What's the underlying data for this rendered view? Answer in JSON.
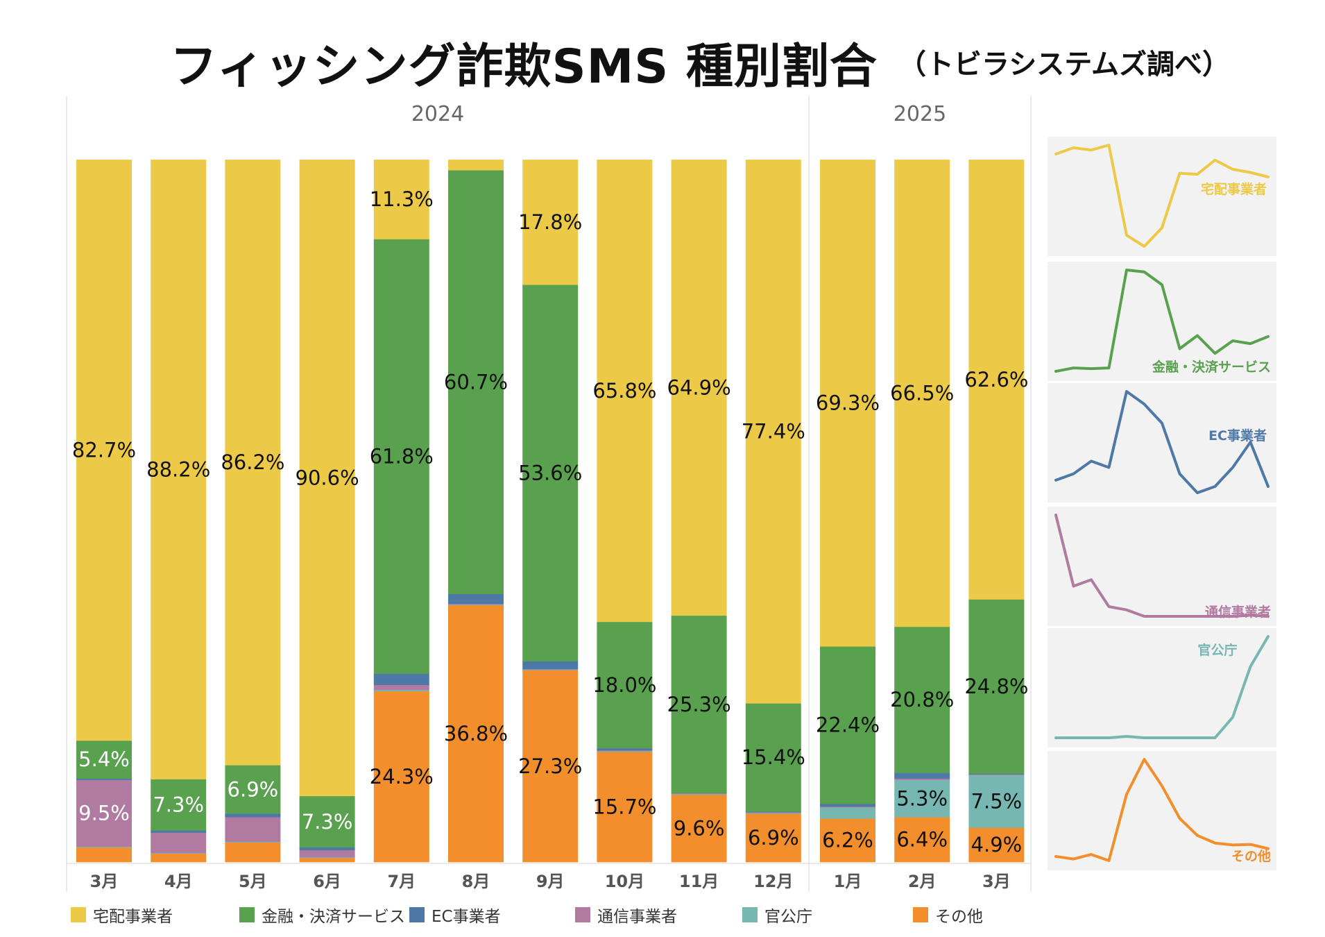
{
  "title": "フィッシング詐欺SMS 種別割合",
  "subtitle": "（トビラシステムズ調べ）",
  "chart_data": {
    "type": "bar",
    "stacked": true,
    "normalized": true,
    "years": [
      {
        "label": "2024",
        "months": [
          "3月",
          "4月",
          "5月",
          "6月",
          "7月",
          "8月",
          "9月",
          "10月",
          "11月",
          "12月"
        ]
      },
      {
        "label": "2025",
        "months": [
          "1月",
          "2月",
          "3月"
        ]
      }
    ],
    "categories": [
      "3月",
      "4月",
      "5月",
      "6月",
      "7月",
      "8月",
      "9月",
      "10月",
      "11月",
      "12月",
      "1月",
      "2月",
      "3月"
    ],
    "series": [
      {
        "key": "other",
        "name": "その他",
        "color": "#F28E2B",
        "values": [
          2.1,
          1.2,
          2.8,
          0.6,
          24.3,
          36.8,
          27.3,
          15.7,
          9.6,
          6.9,
          6.2,
          6.4,
          4.9
        ]
      },
      {
        "key": "gov",
        "name": "官公庁",
        "color": "#76B7B2",
        "values": [
          0.1,
          0.1,
          0.1,
          0.1,
          0.2,
          0.1,
          0.1,
          0.1,
          0.1,
          0.1,
          1.6,
          5.3,
          7.5
        ]
      },
      {
        "key": "telecom",
        "name": "通信事業者",
        "color": "#B07AA1",
        "values": [
          9.5,
          2.9,
          3.5,
          1.0,
          0.7,
          0.1,
          0.1,
          0.1,
          0.1,
          0.1,
          0.1,
          0.2,
          0.1
        ]
      },
      {
        "key": "ec",
        "name": "EC事業者",
        "color": "#4E79A7",
        "values": [
          0.2,
          0.3,
          0.5,
          0.4,
          1.6,
          1.4,
          1.1,
          0.3,
          0.0,
          0.1,
          0.4,
          0.8,
          0.1
        ]
      },
      {
        "key": "finance",
        "name": "金融・決済サービス",
        "color": "#59A14F",
        "values": [
          5.4,
          7.3,
          6.9,
          7.3,
          61.8,
          60.7,
          53.6,
          18.0,
          25.3,
          15.4,
          22.4,
          20.8,
          24.8
        ]
      },
      {
        "key": "delivery",
        "name": "宅配事業者",
        "color": "#EDC948",
        "values": [
          82.7,
          88.2,
          86.2,
          90.6,
          11.3,
          1.5,
          17.8,
          65.8,
          64.9,
          77.4,
          69.3,
          66.5,
          62.6
        ]
      }
    ],
    "data_labels": [
      {
        "series": "delivery",
        "month_index": 0,
        "text": "82.7%"
      },
      {
        "series": "delivery",
        "month_index": 1,
        "text": "88.2%"
      },
      {
        "series": "delivery",
        "month_index": 2,
        "text": "86.2%"
      },
      {
        "series": "delivery",
        "month_index": 3,
        "text": "90.6%"
      },
      {
        "series": "delivery",
        "month_index": 4,
        "text": "11.3%"
      },
      {
        "series": "delivery",
        "month_index": 6,
        "text": "17.8%"
      },
      {
        "series": "delivery",
        "month_index": 7,
        "text": "65.8%"
      },
      {
        "series": "delivery",
        "month_index": 8,
        "text": "64.9%"
      },
      {
        "series": "delivery",
        "month_index": 9,
        "text": "77.4%"
      },
      {
        "series": "delivery",
        "month_index": 10,
        "text": "69.3%"
      },
      {
        "series": "delivery",
        "month_index": 11,
        "text": "66.5%"
      },
      {
        "series": "delivery",
        "month_index": 12,
        "text": "62.6%"
      },
      {
        "series": "finance",
        "month_index": 0,
        "text": "5.4%"
      },
      {
        "series": "finance",
        "month_index": 1,
        "text": "7.3%"
      },
      {
        "series": "finance",
        "month_index": 2,
        "text": "6.9%"
      },
      {
        "series": "finance",
        "month_index": 3,
        "text": "7.3%"
      },
      {
        "series": "finance",
        "month_index": 4,
        "text": "61.8%"
      },
      {
        "series": "finance",
        "month_index": 5,
        "text": "60.7%"
      },
      {
        "series": "finance",
        "month_index": 6,
        "text": "53.6%"
      },
      {
        "series": "finance",
        "month_index": 7,
        "text": "18.0%"
      },
      {
        "series": "finance",
        "month_index": 8,
        "text": "25.3%"
      },
      {
        "series": "finance",
        "month_index": 9,
        "text": "15.4%"
      },
      {
        "series": "finance",
        "month_index": 10,
        "text": "22.4%"
      },
      {
        "series": "finance",
        "month_index": 11,
        "text": "20.8%"
      },
      {
        "series": "finance",
        "month_index": 12,
        "text": "24.8%"
      },
      {
        "series": "telecom",
        "month_index": 0,
        "text": "9.5%"
      },
      {
        "series": "gov",
        "month_index": 11,
        "text": "5.3%"
      },
      {
        "series": "gov",
        "month_index": 12,
        "text": "7.5%"
      },
      {
        "series": "other",
        "month_index": 4,
        "text": "24.3%"
      },
      {
        "series": "other",
        "month_index": 5,
        "text": "36.8%"
      },
      {
        "series": "other",
        "month_index": 6,
        "text": "27.3%"
      },
      {
        "series": "other",
        "month_index": 7,
        "text": "15.7%"
      },
      {
        "series": "other",
        "month_index": 8,
        "text": "9.6%"
      },
      {
        "series": "other",
        "month_index": 9,
        "text": "6.9%"
      },
      {
        "series": "other",
        "month_index": 10,
        "text": "6.2%"
      },
      {
        "series": "other",
        "month_index": 11,
        "text": "6.4%"
      },
      {
        "series": "other",
        "month_index": 12,
        "text": "4.9%"
      }
    ],
    "sparklines": [
      {
        "series": "delivery",
        "label": "宅配事業者",
        "label_position": "top-right"
      },
      {
        "series": "finance",
        "label": "金融・決済サービス",
        "label_position": "bottom-right"
      },
      {
        "series": "ec",
        "label": "EC事業者",
        "label_position": "top-right"
      },
      {
        "series": "telecom",
        "label": "通信事業者",
        "label_position": "bottom-right"
      },
      {
        "series": "gov",
        "label": "官公庁",
        "label_position": "top-center"
      },
      {
        "series": "other",
        "label": "その他",
        "label_position": "bottom-right"
      }
    ],
    "legend": {
      "position": "bottom",
      "items": [
        {
          "label": "宅配事業者",
          "color": "#EDC948"
        },
        {
          "label": "金融・決済サービス",
          "color": "#59A14F"
        },
        {
          "label": "EC事業者",
          "color": "#4E79A7"
        },
        {
          "label": "通信事業者",
          "color": "#B07AA1"
        },
        {
          "label": "官公庁",
          "color": "#76B7B2"
        },
        {
          "label": "その他",
          "color": "#F28E2B"
        }
      ]
    },
    "ylim": [
      0,
      100
    ]
  }
}
